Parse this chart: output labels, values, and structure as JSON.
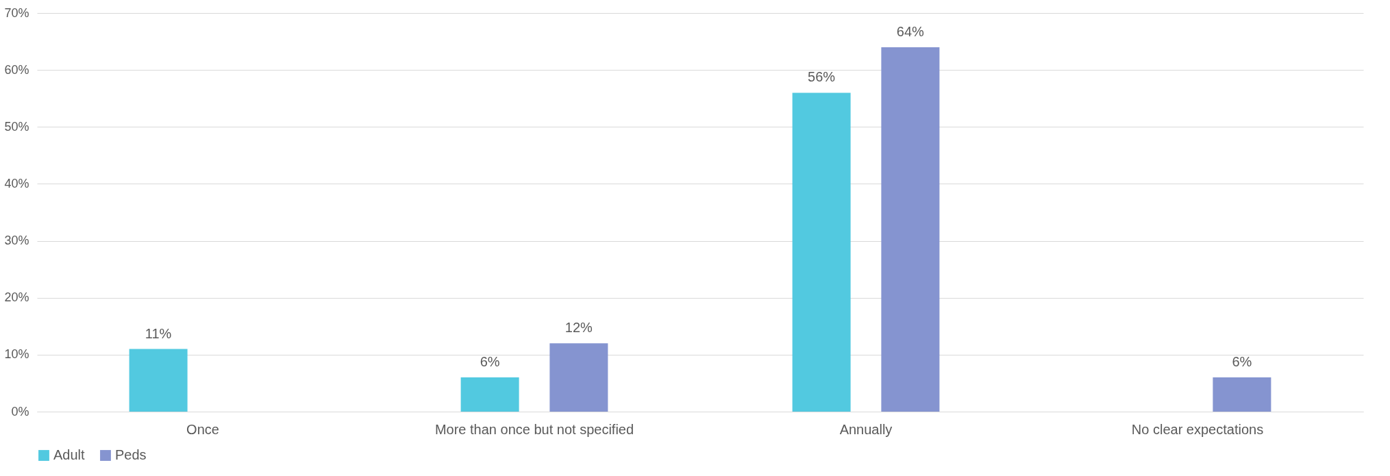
{
  "chart_data": {
    "type": "bar",
    "categories": [
      "Once",
      "More than once but not specified",
      "Annually",
      "No clear expectations"
    ],
    "series": [
      {
        "name": "Adult",
        "color": "#52c9e0",
        "values": [
          11,
          6,
          56,
          null
        ],
        "value_labels": [
          "11%",
          "6%",
          "56%",
          null
        ]
      },
      {
        "name": "Peds",
        "color": "#8594d0",
        "values": [
          null,
          12,
          64,
          6
        ],
        "value_labels": [
          null,
          "12%",
          "64%",
          "6%"
        ]
      }
    ],
    "ylim": [
      0,
      70
    ],
    "yticks": [
      {
        "value": 0,
        "label": "0%"
      },
      {
        "value": 10,
        "label": "10%"
      },
      {
        "value": 20,
        "label": "20%"
      },
      {
        "value": 30,
        "label": "30%"
      },
      {
        "value": 40,
        "label": "40%"
      },
      {
        "value": 50,
        "label": "50%"
      },
      {
        "value": 60,
        "label": "60%"
      },
      {
        "value": 70,
        "label": "70%"
      }
    ],
    "grid": "y",
    "legend": "bottom"
  }
}
